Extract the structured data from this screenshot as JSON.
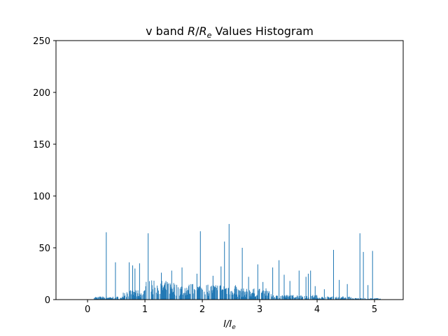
{
  "chart_data": {
    "type": "bar",
    "title": "v band R/Re Values Histogram",
    "title_parts": {
      "lead": "v band ",
      "r": "R",
      "slash": "/",
      "re": "R",
      "re_sub": "e",
      "tail": " Values Histogram"
    },
    "xlabel_parts": {
      "i": "I",
      "slash": "/",
      "ie": "I",
      "ie_sub": "e"
    },
    "xlim": [
      -0.55,
      5.5
    ],
    "ylim": [
      0,
      250
    ],
    "xticks": [
      "0",
      "1",
      "2",
      "3",
      "4",
      "5"
    ],
    "yticks": [
      "0",
      "50",
      "100",
      "150",
      "200",
      "250"
    ],
    "bar_color": "#1f77b4",
    "spikes": [
      {
        "x": 0.32,
        "y": 65
      },
      {
        "x": 0.48,
        "y": 36
      },
      {
        "x": 0.72,
        "y": 36
      },
      {
        "x": 0.78,
        "y": 33
      },
      {
        "x": 0.82,
        "y": 30
      },
      {
        "x": 0.9,
        "y": 35
      },
      {
        "x": 1.05,
        "y": 64
      },
      {
        "x": 1.28,
        "y": 26
      },
      {
        "x": 1.46,
        "y": 28
      },
      {
        "x": 1.64,
        "y": 31
      },
      {
        "x": 1.9,
        "y": 25
      },
      {
        "x": 1.96,
        "y": 66
      },
      {
        "x": 2.18,
        "y": 23
      },
      {
        "x": 2.32,
        "y": 32
      },
      {
        "x": 2.38,
        "y": 56
      },
      {
        "x": 2.46,
        "y": 73
      },
      {
        "x": 2.69,
        "y": 50
      },
      {
        "x": 2.8,
        "y": 22
      },
      {
        "x": 2.96,
        "y": 34
      },
      {
        "x": 3.05,
        "y": 17
      },
      {
        "x": 3.22,
        "y": 31
      },
      {
        "x": 3.33,
        "y": 38
      },
      {
        "x": 3.42,
        "y": 24
      },
      {
        "x": 3.52,
        "y": 18
      },
      {
        "x": 3.68,
        "y": 28
      },
      {
        "x": 3.8,
        "y": 22
      },
      {
        "x": 3.84,
        "y": 25
      },
      {
        "x": 3.88,
        "y": 28
      },
      {
        "x": 3.96,
        "y": 13
      },
      {
        "x": 4.12,
        "y": 10
      },
      {
        "x": 4.28,
        "y": 48
      },
      {
        "x": 4.38,
        "y": 19
      },
      {
        "x": 4.52,
        "y": 15
      },
      {
        "x": 4.74,
        "y": 64
      },
      {
        "x": 4.8,
        "y": 46
      },
      {
        "x": 4.88,
        "y": 14
      },
      {
        "x": 4.96,
        "y": 47
      }
    ],
    "base": [
      {
        "x0": 0.1,
        "x1": 0.6,
        "y": 2
      },
      {
        "x0": 0.6,
        "x1": 1.0,
        "y": 6
      },
      {
        "x0": 1.0,
        "x1": 1.5,
        "y": 12
      },
      {
        "x0": 1.5,
        "x1": 2.6,
        "y": 10
      },
      {
        "x0": 2.6,
        "x1": 3.2,
        "y": 7
      },
      {
        "x0": 3.2,
        "x1": 4.0,
        "y": 3
      },
      {
        "x0": 4.0,
        "x1": 4.6,
        "y": 2
      },
      {
        "x0": 4.6,
        "x1": 5.1,
        "y": 1
      }
    ]
  }
}
